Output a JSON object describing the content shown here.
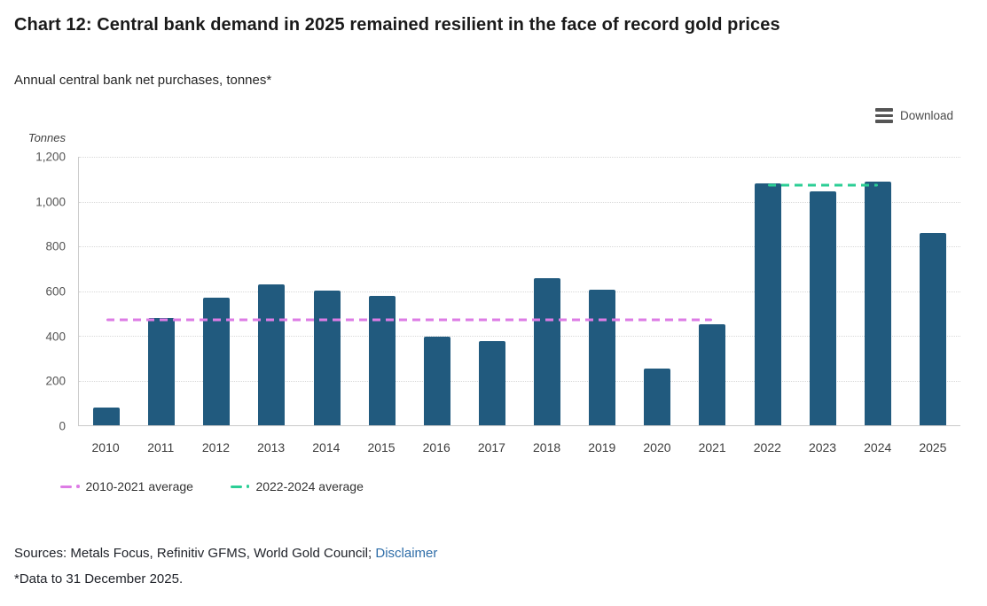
{
  "page": {
    "title": "Chart 12: Central bank demand in 2025 remained resilient in the face of record gold prices",
    "subtitle": "Annual central bank net purchases, tonnes*"
  },
  "toolbar": {
    "download_label": "Download",
    "download_icon": "hamburger-menu-icon"
  },
  "chart_data": {
    "type": "bar",
    "title": "Chart 12: Central bank demand in 2025 remained resilient in the face of record gold prices",
    "subtitle": "Annual central bank net purchases, tonnes*",
    "categories": [
      "2010",
      "2011",
      "2012",
      "2013",
      "2014",
      "2015",
      "2016",
      "2017",
      "2018",
      "2019",
      "2020",
      "2021",
      "2022",
      "2023",
      "2024",
      "2025"
    ],
    "series": [
      {
        "name": "Annual central bank net purchases",
        "type": "column",
        "color": "#215a7e",
        "values": [
          79,
          481,
          569,
          629,
          601,
          580,
          395,
          375,
          656,
          605,
          255,
          450,
          1080,
          1045,
          1090,
          860
        ]
      }
    ],
    "avg_lines": [
      {
        "name": "2010-2021 average",
        "value": 473,
        "from": "2010",
        "to": "2021",
        "from_index": 0,
        "to_index": 11,
        "color": "#dd7ce5",
        "style": "dashed"
      },
      {
        "name": "2022-2024 average",
        "value": 1072,
        "from": "2022",
        "to": "2024",
        "from_index": 12,
        "to_index": 14,
        "color": "#2bce95",
        "style": "dashed"
      }
    ],
    "legend": [
      {
        "label": "2010-2021 average",
        "color": "#dd7ce5"
      },
      {
        "label": "2022-2024 average",
        "color": "#2bce95"
      }
    ],
    "legend_position": "bottom-left",
    "xlabel": "",
    "ylabel": "Tonnes",
    "ylim": [
      0,
      1200
    ],
    "yticks": [
      {
        "value": 0,
        "label": "0"
      },
      {
        "value": 200,
        "label": "200"
      },
      {
        "value": 400,
        "label": "400"
      },
      {
        "value": 600,
        "label": "600"
      },
      {
        "value": 800,
        "label": "800"
      },
      {
        "value": 1000,
        "label": "1,000"
      },
      {
        "value": 1200,
        "label": "1,200"
      }
    ],
    "grid": "horizontal-dotted"
  },
  "footer": {
    "sources_prefix": "Sources: Metals Focus, Refinitiv GFMS, World Gold Council; ",
    "disclaimer_label": "Disclaimer",
    "footnote": "*Data to 31 December 2025."
  }
}
